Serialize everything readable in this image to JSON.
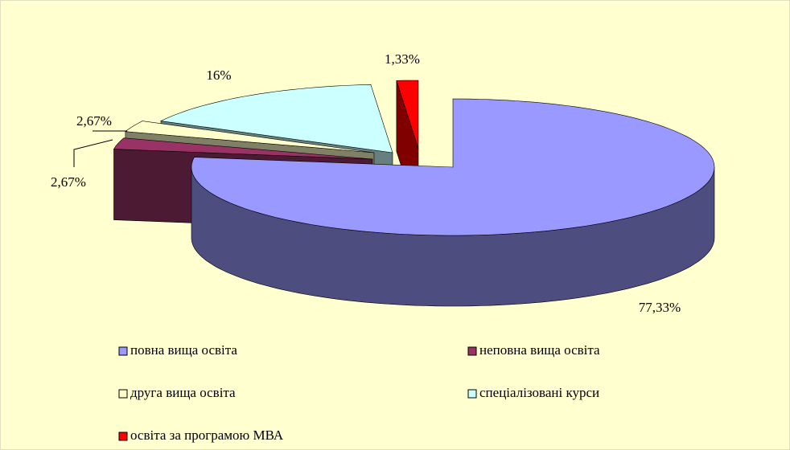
{
  "chart_data": {
    "type": "pie3d",
    "categories": [
      "повна вища освіта",
      "неповна вища освіта",
      "друга вища освіта",
      "спеціалізовані курси",
      "освіта за програмою  МВА"
    ],
    "values": [
      77.33,
      2.67,
      2.67,
      16,
      1.33
    ],
    "value_labels": [
      "77,33%",
      "2,67%",
      "2,67%",
      "16%",
      "1,33%"
    ],
    "colors": [
      "#9999ff",
      "#993366",
      "#ffffcc",
      "#ccffff",
      "#ff0000"
    ]
  }
}
